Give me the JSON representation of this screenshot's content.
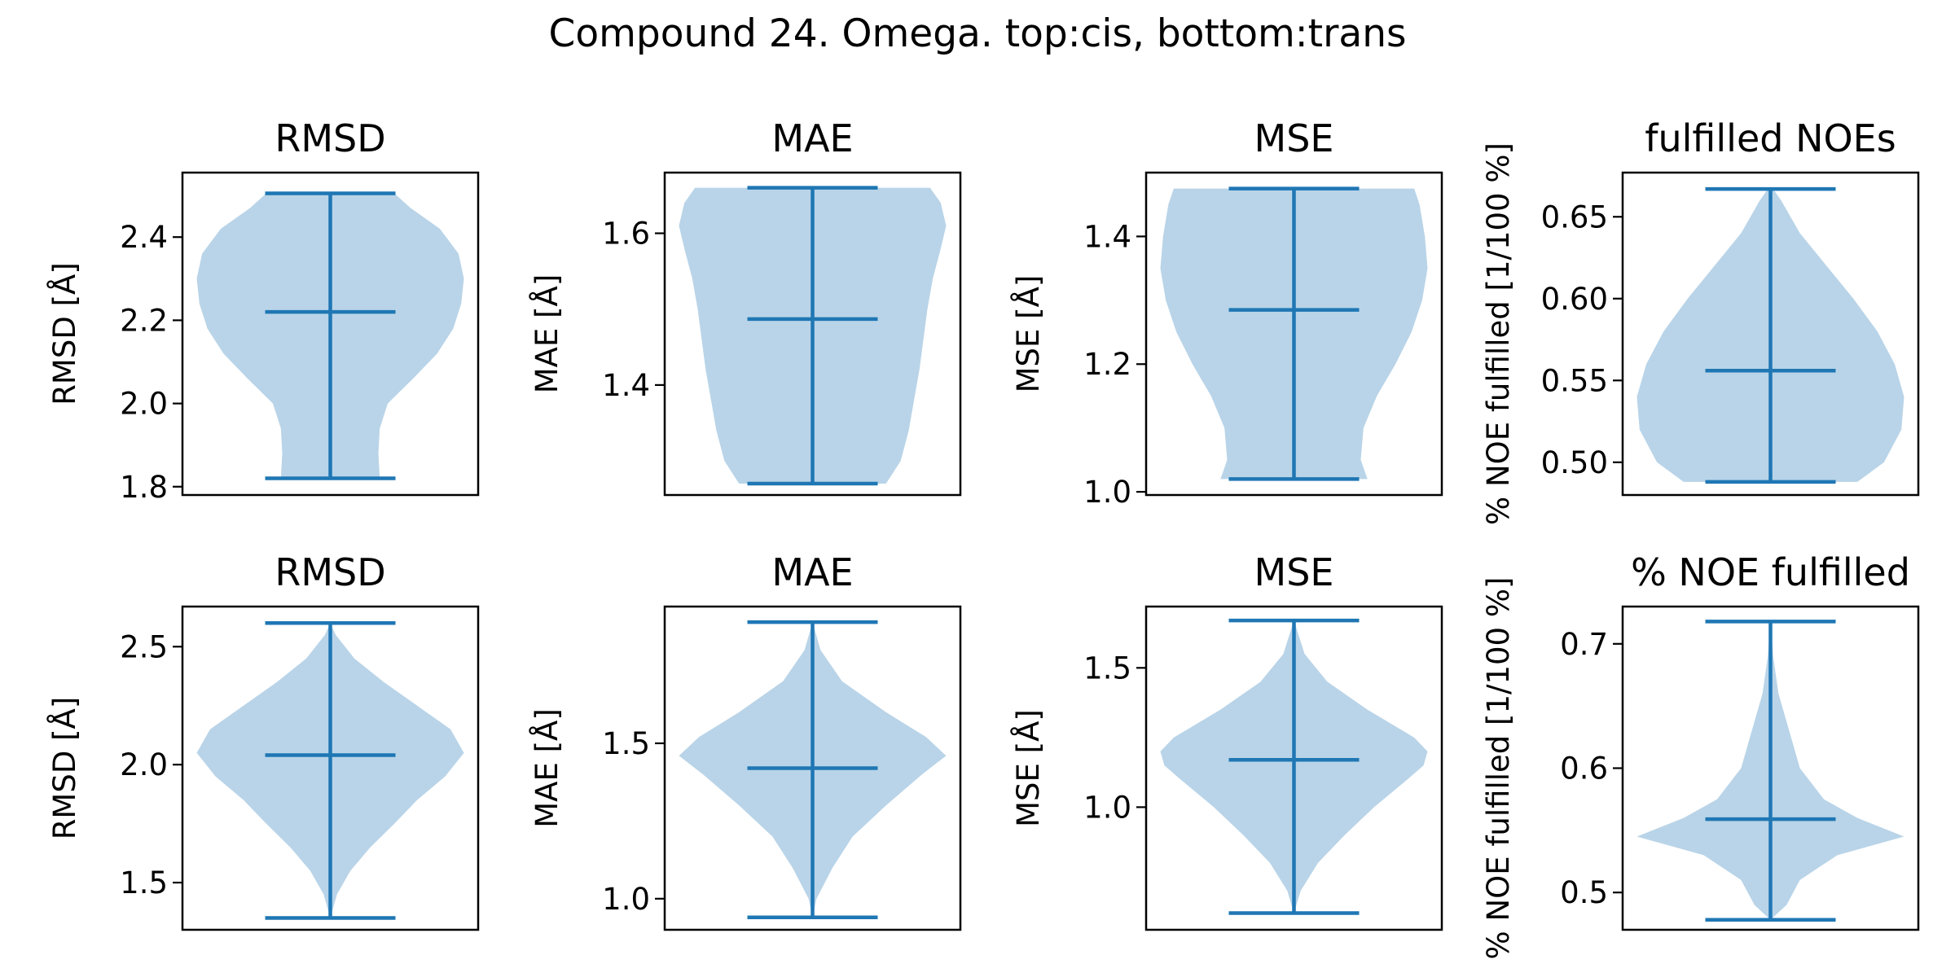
{
  "title": "Compound 24. Omega. top:cis, bottom:trans",
  "chart_data": [
    {
      "type": "violin",
      "row": "top",
      "title": "RMSD",
      "ylabel": "RMSD [Å]",
      "ylim": [
        1.78,
        2.555
      ],
      "yticks": [
        1.8,
        2.0,
        2.2,
        2.4
      ],
      "tick_decimals": 1,
      "min": 1.82,
      "max": 2.505,
      "median": 2.22,
      "density": [
        [
          1.82,
          0.37
        ],
        [
          1.88,
          0.36
        ],
        [
          1.94,
          0.37
        ],
        [
          2.0,
          0.43
        ],
        [
          2.06,
          0.62
        ],
        [
          2.12,
          0.8
        ],
        [
          2.18,
          0.92
        ],
        [
          2.24,
          0.98
        ],
        [
          2.3,
          1.0
        ],
        [
          2.36,
          0.96
        ],
        [
          2.42,
          0.82
        ],
        [
          2.47,
          0.6
        ],
        [
          2.505,
          0.48
        ]
      ]
    },
    {
      "type": "violin",
      "row": "top",
      "title": "MAE",
      "ylabel": "MAE [Å]",
      "ylim": [
        1.255,
        1.68
      ],
      "yticks": [
        1.4,
        1.6
      ],
      "tick_decimals": 1,
      "min": 1.27,
      "max": 1.66,
      "median": 1.487,
      "density": [
        [
          1.27,
          0.55
        ],
        [
          1.3,
          0.66
        ],
        [
          1.34,
          0.72
        ],
        [
          1.38,
          0.76
        ],
        [
          1.42,
          0.8
        ],
        [
          1.46,
          0.83
        ],
        [
          1.5,
          0.86
        ],
        [
          1.54,
          0.9
        ],
        [
          1.58,
          0.96
        ],
        [
          1.61,
          1.0
        ],
        [
          1.64,
          0.96
        ],
        [
          1.66,
          0.88
        ]
      ]
    },
    {
      "type": "violin",
      "row": "top",
      "title": "MSE",
      "ylabel": "MSE [Å]",
      "ylim": [
        0.995,
        1.5
      ],
      "yticks": [
        1.0,
        1.2,
        1.4
      ],
      "tick_decimals": 1,
      "min": 1.02,
      "max": 1.475,
      "median": 1.285,
      "density": [
        [
          1.02,
          0.55
        ],
        [
          1.05,
          0.5
        ],
        [
          1.1,
          0.52
        ],
        [
          1.15,
          0.62
        ],
        [
          1.2,
          0.76
        ],
        [
          1.25,
          0.88
        ],
        [
          1.3,
          0.96
        ],
        [
          1.35,
          1.0
        ],
        [
          1.4,
          0.98
        ],
        [
          1.45,
          0.94
        ],
        [
          1.475,
          0.9
        ]
      ]
    },
    {
      "type": "violin",
      "row": "top",
      "title": "fulfilled NOEs",
      "ylabel": "% NOE fulfilled [1/100 %]",
      "ylim": [
        0.48,
        0.677
      ],
      "yticks": [
        0.5,
        0.55,
        0.6,
        0.65
      ],
      "tick_decimals": 2,
      "min": 0.488,
      "max": 0.667,
      "median": 0.556,
      "density": [
        [
          0.488,
          0.65
        ],
        [
          0.5,
          0.85
        ],
        [
          0.52,
          0.98
        ],
        [
          0.54,
          1.0
        ],
        [
          0.56,
          0.93
        ],
        [
          0.58,
          0.8
        ],
        [
          0.6,
          0.62
        ],
        [
          0.62,
          0.42
        ],
        [
          0.64,
          0.22
        ],
        [
          0.66,
          0.08
        ],
        [
          0.667,
          0.02
        ]
      ]
    },
    {
      "type": "violin",
      "row": "bottom",
      "title": "RMSD",
      "ylabel": "RMSD [Å]",
      "ylim": [
        1.3,
        2.67
      ],
      "yticks": [
        1.5,
        2.0,
        2.5
      ],
      "tick_decimals": 1,
      "min": 1.35,
      "max": 2.6,
      "median": 2.04,
      "density": [
        [
          1.35,
          0.0
        ],
        [
          1.45,
          0.05
        ],
        [
          1.55,
          0.15
        ],
        [
          1.65,
          0.3
        ],
        [
          1.75,
          0.48
        ],
        [
          1.85,
          0.65
        ],
        [
          1.95,
          0.86
        ],
        [
          2.05,
          1.0
        ],
        [
          2.15,
          0.9
        ],
        [
          2.25,
          0.65
        ],
        [
          2.35,
          0.4
        ],
        [
          2.45,
          0.18
        ],
        [
          2.55,
          0.04
        ],
        [
          2.6,
          0.0
        ]
      ]
    },
    {
      "type": "violin",
      "row": "bottom",
      "title": "MAE",
      "ylabel": "MAE [Å]",
      "ylim": [
        0.9,
        1.94
      ],
      "yticks": [
        1.0,
        1.5
      ],
      "tick_decimals": 1,
      "min": 0.94,
      "max": 1.89,
      "median": 1.42,
      "density": [
        [
          0.94,
          0.0
        ],
        [
          1.0,
          0.03
        ],
        [
          1.1,
          0.15
        ],
        [
          1.2,
          0.3
        ],
        [
          1.3,
          0.55
        ],
        [
          1.4,
          0.82
        ],
        [
          1.46,
          1.0
        ],
        [
          1.52,
          0.85
        ],
        [
          1.6,
          0.55
        ],
        [
          1.7,
          0.22
        ],
        [
          1.8,
          0.06
        ],
        [
          1.89,
          0.0
        ]
      ]
    },
    {
      "type": "violin",
      "row": "bottom",
      "title": "MSE",
      "ylabel": "MSE [Å]",
      "ylim": [
        0.56,
        1.72
      ],
      "yticks": [
        1.0,
        1.5
      ],
      "tick_decimals": 1,
      "min": 0.62,
      "max": 1.67,
      "median": 1.17,
      "density": [
        [
          0.62,
          0.0
        ],
        [
          0.7,
          0.05
        ],
        [
          0.8,
          0.18
        ],
        [
          0.9,
          0.38
        ],
        [
          1.0,
          0.6
        ],
        [
          1.1,
          0.85
        ],
        [
          1.15,
          0.97
        ],
        [
          1.2,
          1.0
        ],
        [
          1.25,
          0.9
        ],
        [
          1.35,
          0.55
        ],
        [
          1.45,
          0.25
        ],
        [
          1.55,
          0.08
        ],
        [
          1.67,
          0.0
        ]
      ]
    },
    {
      "type": "violin",
      "row": "bottom",
      "title": "% NOE fulfilled",
      "ylabel": "% NOE fulfilled [1/100 %]",
      "ylim": [
        0.47,
        0.73
      ],
      "yticks": [
        0.5,
        0.6,
        0.7
      ],
      "tick_decimals": 1,
      "min": 0.478,
      "max": 0.718,
      "median": 0.559,
      "density": [
        [
          0.478,
          0.0
        ],
        [
          0.49,
          0.12
        ],
        [
          0.51,
          0.22
        ],
        [
          0.53,
          0.5
        ],
        [
          0.545,
          1.0
        ],
        [
          0.56,
          0.65
        ],
        [
          0.575,
          0.4
        ],
        [
          0.6,
          0.22
        ],
        [
          0.63,
          0.14
        ],
        [
          0.66,
          0.06
        ],
        [
          0.69,
          0.02
        ],
        [
          0.718,
          0.0
        ]
      ]
    }
  ]
}
